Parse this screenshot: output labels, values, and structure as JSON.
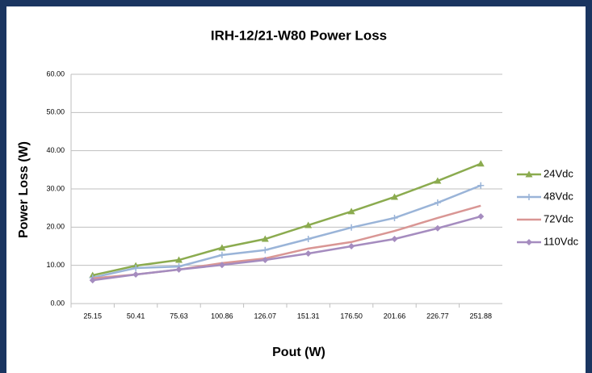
{
  "chart_data": {
    "type": "line",
    "title": "IRH-12/21-W80 Power Loss",
    "x_label": "Pout (W)",
    "y_label": "Power Loss (W)",
    "categories": [
      "25.15",
      "50.41",
      "75.63",
      "100.86",
      "126.07",
      "151.31",
      "176.50",
      "201.66",
      "226.77",
      "251.88"
    ],
    "series": [
      {
        "name": "24Vdc",
        "color": "#8bab4f",
        "marker": "triangle",
        "values": [
          7.4,
          9.9,
          11.4,
          14.6,
          16.9,
          20.5,
          24.1,
          27.9,
          32.1,
          36.6
        ]
      },
      {
        "name": "48Vdc",
        "color": "#9ab4d8",
        "marker": "plus",
        "values": [
          6.8,
          9.3,
          9.7,
          12.7,
          14.0,
          16.9,
          19.9,
          22.4,
          26.4,
          30.9
        ]
      },
      {
        "name": "72Vdc",
        "color": "#d99694",
        "marker": "none",
        "values": [
          6.6,
          7.6,
          8.9,
          10.6,
          11.8,
          14.4,
          16.1,
          19.0,
          22.4,
          25.6
        ]
      },
      {
        "name": "110Vdc",
        "color": "#a58cbf",
        "marker": "diamond",
        "values": [
          6.1,
          7.6,
          8.9,
          10.1,
          11.4,
          13.1,
          15.0,
          16.9,
          19.7,
          22.8
        ]
      }
    ],
    "ylim": [
      0,
      60
    ],
    "yticks": [
      {
        "value": 0,
        "label": "0.00"
      },
      {
        "value": 10,
        "label": "10.00"
      },
      {
        "value": 20,
        "label": "20.00"
      },
      {
        "value": 30,
        "label": "30.00"
      },
      {
        "value": 40,
        "label": "40.00"
      },
      {
        "value": 50,
        "label": "50.00"
      },
      {
        "value": 60,
        "label": "60.00"
      }
    ],
    "grid": true,
    "legend": "right"
  }
}
